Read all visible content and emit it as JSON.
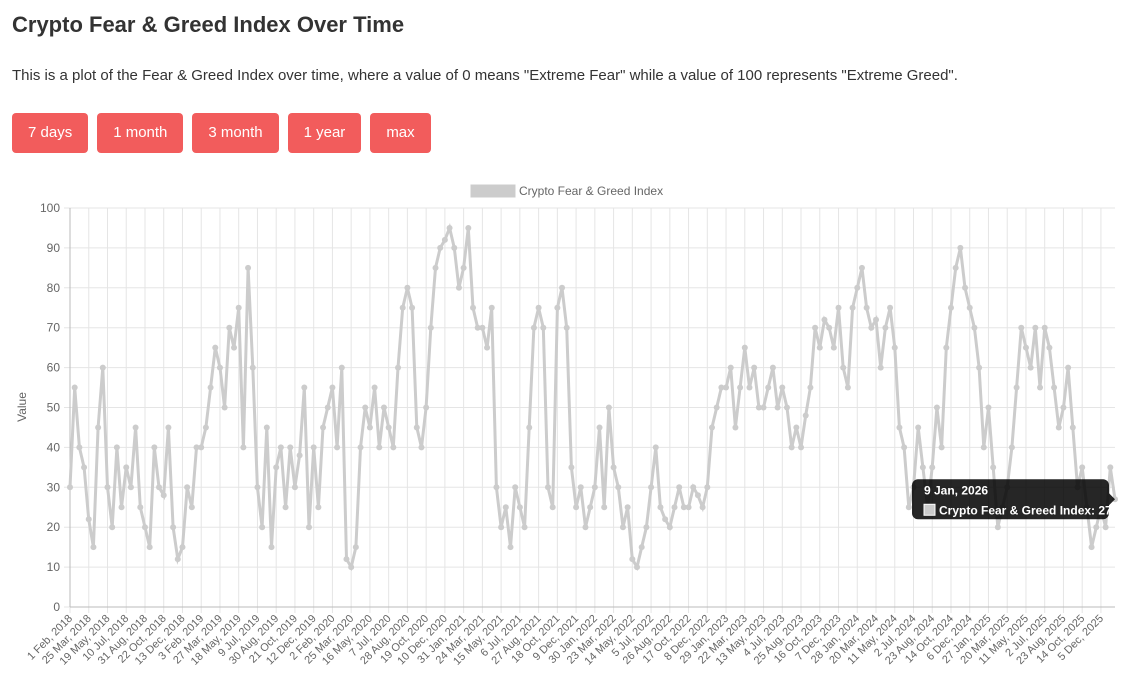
{
  "header": {
    "title": "Crypto Fear & Greed Index Over Time",
    "description": "This is a plot of the Fear & Greed Index over time, where a value of 0 means \"Extreme Fear\" while a value of 100 represents \"Extreme Greed\"."
  },
  "buttons": [
    "7 days",
    "1 month",
    "3 month",
    "1 year",
    "max"
  ],
  "chart_data": {
    "type": "line",
    "y_label": "Value",
    "categories": [
      "1 Feb, 2018",
      null,
      null,
      null,
      "25 Mar, 2018",
      null,
      null,
      null,
      "19 May, 2018",
      null,
      null,
      null,
      "10 Jul, 2018",
      null,
      null,
      null,
      "31 Aug, 2018",
      null,
      null,
      null,
      "22 Oct, 2018",
      null,
      null,
      null,
      "13 Dec, 2018",
      null,
      null,
      null,
      "3 Feb, 2019",
      null,
      null,
      null,
      "27 Mar, 2019",
      null,
      null,
      null,
      "18 May, 2019",
      null,
      null,
      null,
      "9 Jul, 2019",
      null,
      null,
      null,
      "30 Aug, 2019",
      null,
      null,
      null,
      "21 Oct, 2019",
      null,
      null,
      null,
      "12 Dec, 2019",
      null,
      null,
      null,
      "2 Feb, 2020",
      null,
      null,
      null,
      "25 Mar, 2020",
      null,
      null,
      null,
      "16 May, 2020",
      null,
      null,
      null,
      "7 Jul, 2020",
      null,
      null,
      null,
      "28 Aug, 2020",
      null,
      null,
      null,
      "19 Oct, 2020",
      null,
      null,
      null,
      "10 Dec, 2020",
      null,
      null,
      null,
      "31 Jan, 2021",
      null,
      null,
      null,
      "24 Mar, 2021",
      null,
      null,
      null,
      "15 May, 2021",
      null,
      null,
      null,
      "6 Jul, 2021",
      null,
      null,
      null,
      "27 Aug, 2021",
      null,
      null,
      null,
      "18 Oct, 2021",
      null,
      null,
      null,
      "9 Dec, 2021",
      null,
      null,
      null,
      "30 Jan, 2022",
      null,
      null,
      null,
      "23 Mar, 2022",
      null,
      null,
      null,
      "14 May, 2022",
      null,
      null,
      null,
      "5 Jul, 2022",
      null,
      null,
      null,
      "26 Aug, 2022",
      null,
      null,
      null,
      "17 Oct, 2022",
      null,
      null,
      null,
      "8 Dec, 2022",
      null,
      null,
      null,
      "29 Jan, 2023",
      null,
      null,
      null,
      "22 Mar, 2023",
      null,
      null,
      null,
      "13 May, 2023",
      null,
      null,
      null,
      "4 Jul, 2023",
      null,
      null,
      null,
      "25 Aug, 2023",
      null,
      null,
      null,
      "16 Oct, 2023",
      null,
      null,
      null,
      "7 Dec, 2023",
      null,
      null,
      null,
      "28 Jan, 2024",
      null,
      null,
      null,
      "20 Mar, 2024",
      null,
      null,
      null,
      "11 May, 2024",
      null,
      null,
      null,
      "2 Jul, 2024",
      null,
      null,
      null,
      "23 Aug, 2024",
      null,
      null,
      null,
      "14 Oct, 2024",
      null,
      null,
      null,
      "6 Dec, 2024",
      null,
      null,
      null,
      "27 Jan, 2025",
      null,
      null,
      null,
      "20 Mar, 2025",
      null,
      null,
      null,
      "11 May, 2025",
      null,
      null,
      null,
      "2 Jul, 2025",
      null,
      null,
      null,
      "23 Aug, 2025",
      null,
      null,
      null,
      "14 Oct, 2025",
      null,
      null,
      null,
      "5 Dec, 2025",
      null,
      null,
      null
    ],
    "series": [
      {
        "name": "Crypto Fear & Greed Index",
        "color": "#cccccc",
        "values": [
          30,
          55,
          40,
          35,
          22,
          15,
          45,
          60,
          30,
          20,
          40,
          25,
          35,
          30,
          45,
          25,
          20,
          15,
          40,
          30,
          28,
          45,
          20,
          12,
          15,
          30,
          25,
          40,
          40,
          45,
          55,
          65,
          60,
          50,
          70,
          65,
          75,
          40,
          85,
          60,
          30,
          20,
          45,
          15,
          35,
          40,
          25,
          40,
          30,
          38,
          55,
          20,
          40,
          25,
          45,
          50,
          55,
          40,
          60,
          12,
          10,
          15,
          40,
          50,
          45,
          55,
          40,
          50,
          45,
          40,
          60,
          75,
          80,
          75,
          45,
          40,
          50,
          70,
          85,
          90,
          92,
          95,
          90,
          80,
          85,
          95,
          75,
          70,
          70,
          65,
          75,
          30,
          20,
          25,
          15,
          30,
          25,
          20,
          45,
          70,
          75,
          70,
          30,
          25,
          75,
          80,
          70,
          35,
          25,
          30,
          20,
          25,
          30,
          45,
          25,
          50,
          35,
          30,
          20,
          25,
          12,
          10,
          15,
          20,
          30,
          40,
          25,
          22,
          20,
          25,
          30,
          25,
          25,
          30,
          28,
          25,
          30,
          45,
          50,
          55,
          55,
          60,
          45,
          55,
          65,
          55,
          60,
          50,
          50,
          55,
          60,
          50,
          55,
          50,
          40,
          45,
          40,
          48,
          55,
          70,
          65,
          72,
          70,
          65,
          75,
          60,
          55,
          75,
          80,
          85,
          75,
          70,
          72,
          60,
          70,
          75,
          65,
          45,
          40,
          25,
          30,
          45,
          35,
          25,
          35,
          50,
          40,
          65,
          75,
          85,
          90,
          80,
          75,
          70,
          60,
          40,
          50,
          35,
          20,
          25,
          30,
          40,
          55,
          70,
          65,
          60,
          70,
          55,
          70,
          65,
          55,
          45,
          50,
          60,
          45,
          30,
          35,
          25,
          15,
          20,
          25,
          20,
          35,
          27
        ]
      }
    ],
    "ylim": [
      0,
      100
    ],
    "yticks": [
      0,
      10,
      20,
      30,
      40,
      50,
      60,
      70,
      80,
      90,
      100
    ],
    "grid": true,
    "legend": "top",
    "tooltip": {
      "title": "9 Jan, 2026",
      "text": "Crypto Fear & Greed Index: 27"
    }
  }
}
